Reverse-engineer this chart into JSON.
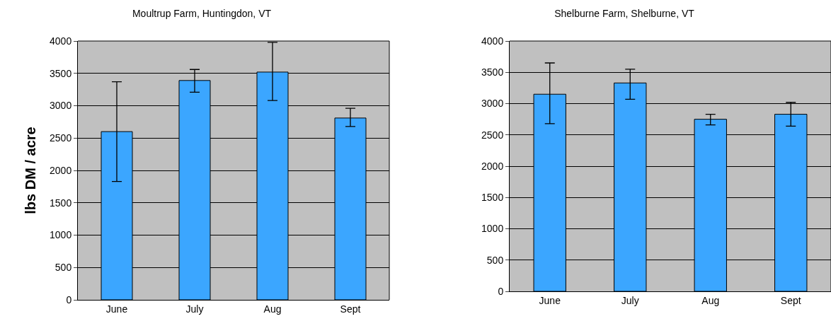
{
  "chart_data": [
    {
      "type": "bar",
      "title": "Moultrup Farm, Huntingdon, VT",
      "ylabel": "lbs DM / acre",
      "categories": [
        "June",
        "July",
        "Aug",
        "Sept"
      ],
      "values": [
        2600,
        3390,
        3520,
        2810
      ],
      "color": "#3ba6ff",
      "errors": [
        [
          1830,
          3370
        ],
        [
          3210,
          3560
        ],
        [
          3080,
          3980
        ],
        [
          2680,
          2960
        ]
      ],
      "ylim": [
        0,
        4000
      ],
      "yticks": [
        0,
        500,
        1000,
        1500,
        2000,
        2500,
        3000,
        3500,
        4000
      ],
      "grid": "y",
      "legend": false
    },
    {
      "type": "bar",
      "title": "Shelburne Farm, Shelburne, VT",
      "categories": [
        "June",
        "July",
        "Aug",
        "Sept"
      ],
      "values": [
        3150,
        3330,
        2750,
        2830
      ],
      "color": "#3ba6ff",
      "errors": [
        [
          2680,
          3650
        ],
        [
          3070,
          3550
        ],
        [
          2660,
          2830
        ],
        [
          2640,
          3020
        ]
      ],
      "ylim": [
        0,
        4000
      ],
      "yticks": [
        0,
        500,
        1000,
        1500,
        2000,
        2500,
        3000,
        3500,
        4000
      ],
      "grid": "y",
      "legend": false
    }
  ]
}
